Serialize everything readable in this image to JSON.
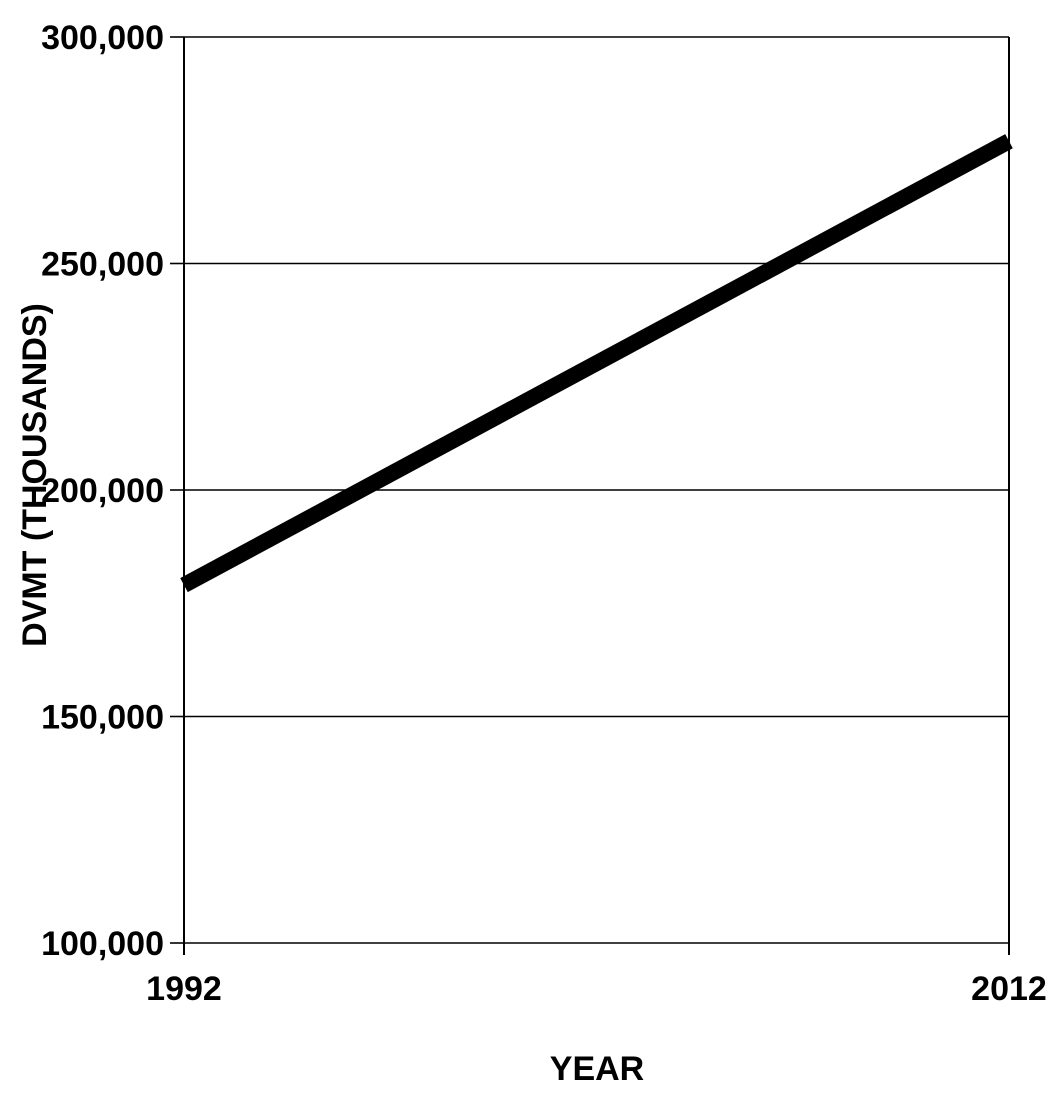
{
  "chart_data": {
    "type": "line",
    "title": "",
    "xlabel": "YEAR",
    "ylabel": "DVMT (THOUSANDS)",
    "x": [
      1992,
      2012
    ],
    "xlim": [
      1992,
      2012
    ],
    "xticks": [
      "1992",
      "2012"
    ],
    "ylim": [
      100000,
      300000
    ],
    "yticks": [
      "100,000",
      "150,000",
      "200,000",
      "250,000",
      "300,000"
    ],
    "ytick_values": [
      100000,
      150000,
      200000,
      250000,
      300000
    ],
    "grid": true,
    "series": [
      {
        "values": [
          179000,
          277000
        ]
      }
    ],
    "colors": {
      "line": "#000000",
      "grid": "#000000",
      "axis": "#000000"
    }
  }
}
